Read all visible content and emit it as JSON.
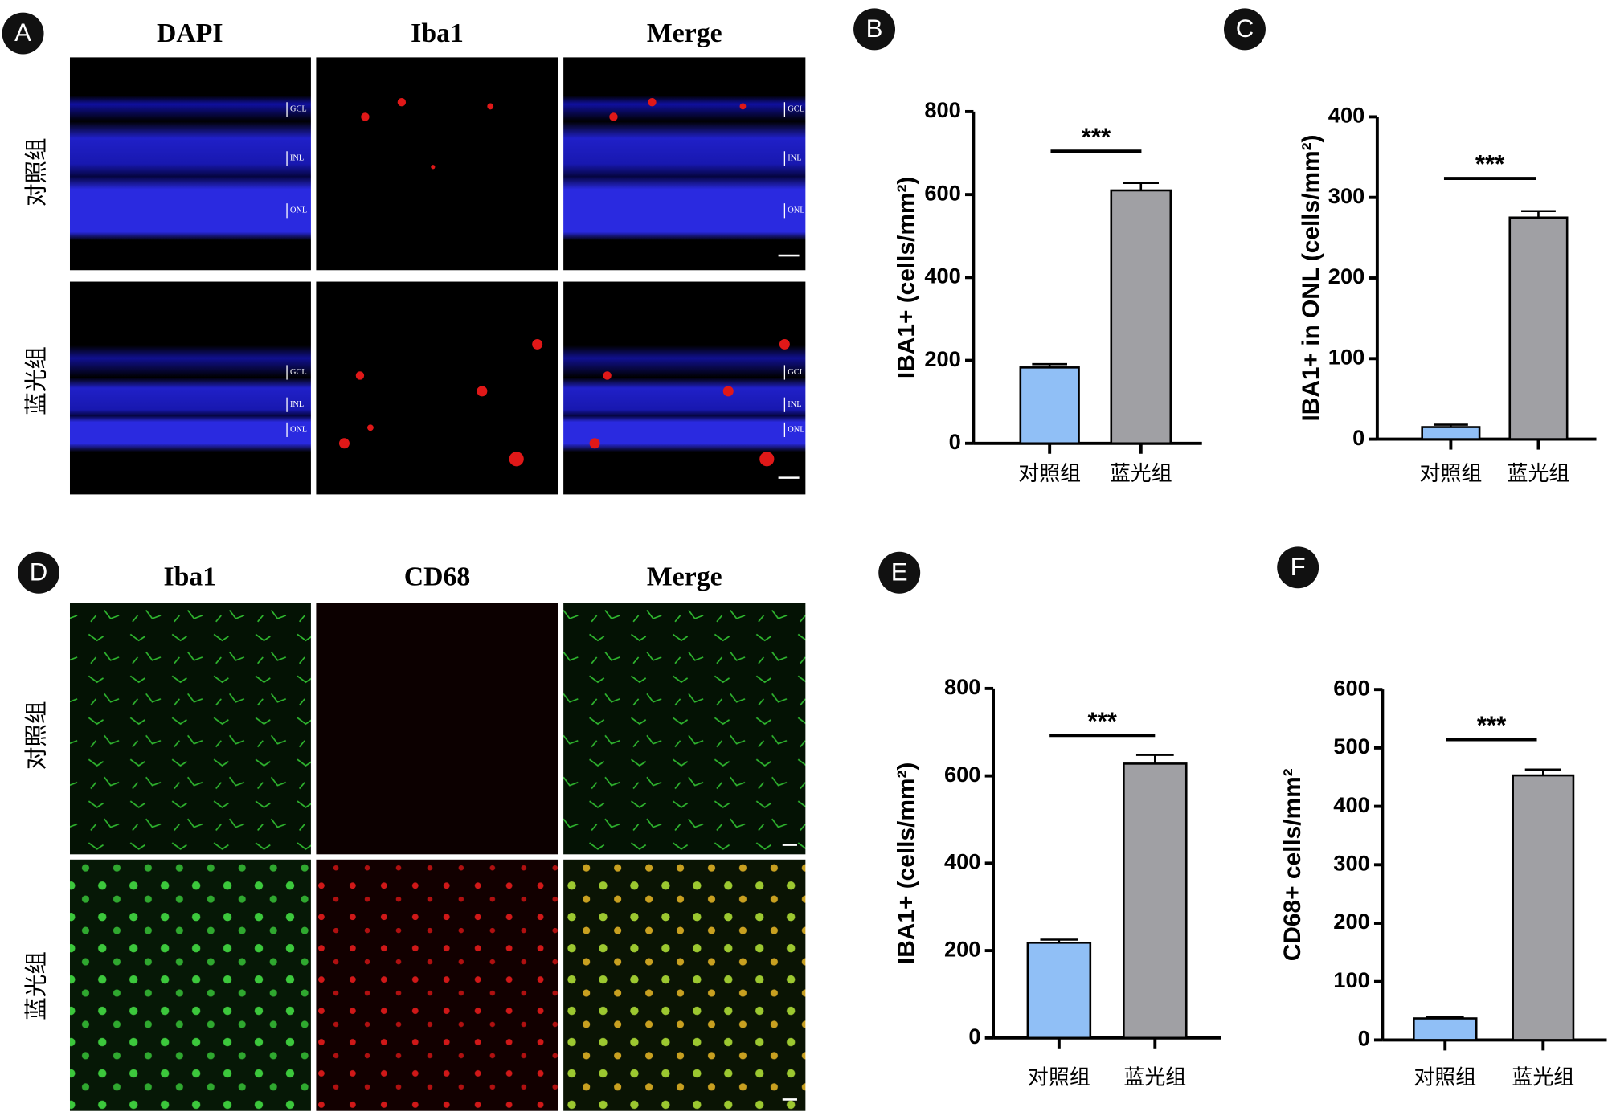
{
  "figure": {
    "A": {
      "label": "A",
      "columns": [
        "DAPI",
        "Iba1",
        "Merge"
      ],
      "rows": [
        "对照组",
        "蓝光组"
      ],
      "layers": [
        "GCL",
        "INL",
        "ONL"
      ]
    },
    "D": {
      "label": "D",
      "columns": [
        "Iba1",
        "CD68",
        "Merge"
      ],
      "rows": [
        "对照组",
        "蓝光组"
      ]
    }
  },
  "chart_data": [
    {
      "type": "bar",
      "label": "B",
      "y_label": "IBA1+ (cells/mm²)",
      "categories": [
        "对照组",
        "蓝光组"
      ],
      "values": [
        183,
        610
      ],
      "errors": [
        8,
        18
      ],
      "colors": [
        "#90bff6",
        "#a0a0a4"
      ],
      "ylim": [
        0,
        800
      ],
      "yticks": [
        0,
        200,
        400,
        600,
        800
      ],
      "annotation": "***"
    },
    {
      "type": "bar",
      "label": "C",
      "y_label": "IBA1+ in ONL (cells/mm²)",
      "categories": [
        "对照组",
        "蓝光组"
      ],
      "values": [
        15,
        275
      ],
      "errors": [
        3,
        8
      ],
      "colors": [
        "#90bff6",
        "#a0a0a4"
      ],
      "ylim": [
        0,
        400
      ],
      "yticks": [
        0,
        100,
        200,
        300,
        400
      ],
      "annotation": "***"
    },
    {
      "type": "bar",
      "label": "E",
      "y_label": "IBA1+ (cells/mm²)",
      "categories": [
        "对照组",
        "蓝光组"
      ],
      "values": [
        218,
        628
      ],
      "errors": [
        7,
        20
      ],
      "colors": [
        "#90bff6",
        "#a0a0a4"
      ],
      "ylim": [
        0,
        800
      ],
      "yticks": [
        0,
        200,
        400,
        600,
        800
      ],
      "annotation": "***"
    },
    {
      "type": "bar",
      "label": "F",
      "y_label": "CD68+ cells/mm²",
      "categories": [
        "对照组",
        "蓝光组"
      ],
      "values": [
        37,
        453
      ],
      "errors": [
        3,
        10
      ],
      "colors": [
        "#90bff6",
        "#a0a0a4"
      ],
      "ylim": [
        0,
        600
      ],
      "yticks": [
        0,
        100,
        200,
        300,
        400,
        500,
        600
      ],
      "annotation": "***"
    }
  ]
}
